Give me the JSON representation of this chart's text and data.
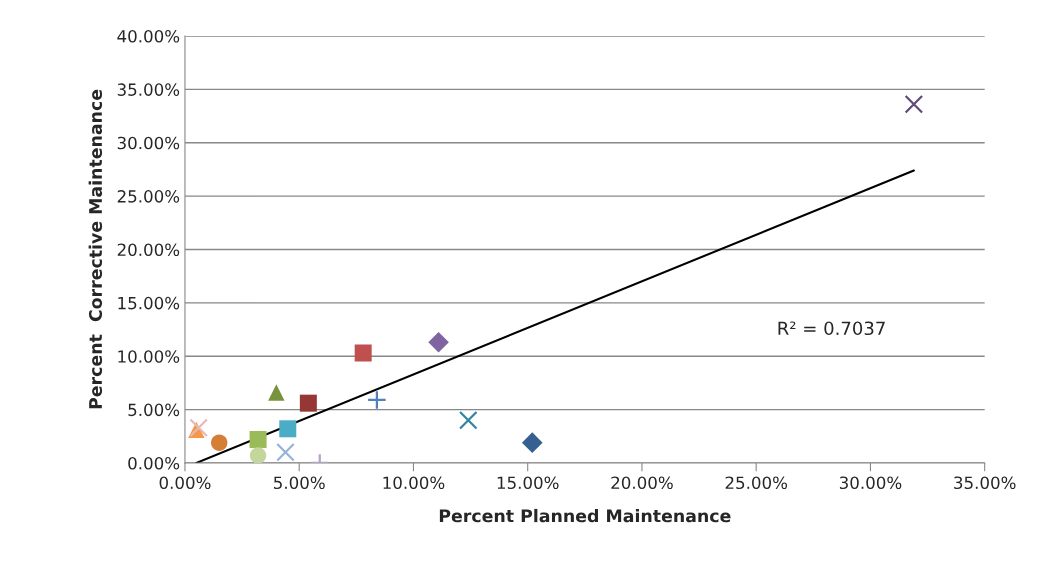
{
  "chart_data": {
    "type": "scatter",
    "xlabel": "Percent Planned Maintenance",
    "ylabel": "Percent  Corrective Maintenance",
    "xlim": [
      0,
      35
    ],
    "ylim": [
      0,
      40
    ],
    "xticks": [
      {
        "value": 0,
        "label": "0.00%"
      },
      {
        "value": 5,
        "label": "5.00%"
      },
      {
        "value": 10,
        "label": "10.00%"
      },
      {
        "value": 15,
        "label": "15.00%"
      },
      {
        "value": 20,
        "label": "20.00%"
      },
      {
        "value": 25,
        "label": "25.00%"
      },
      {
        "value": 30,
        "label": "30.00%"
      },
      {
        "value": 35,
        "label": "35.00%"
      }
    ],
    "yticks": [
      {
        "value": 0,
        "label": "0.00%"
      },
      {
        "value": 5,
        "label": "5.00%"
      },
      {
        "value": 10,
        "label": "10.00%"
      },
      {
        "value": 15,
        "label": "15.00%"
      },
      {
        "value": 20,
        "label": "20.00%"
      },
      {
        "value": 25,
        "label": "25.00%"
      },
      {
        "value": 30,
        "label": "30.00%"
      },
      {
        "value": 35,
        "label": "35.00%"
      },
      {
        "value": 40,
        "label": "40.00%"
      }
    ],
    "grid": "y",
    "legend": false,
    "annotations": [
      "R² = 0.7037"
    ],
    "series": [
      {
        "color": "#f79646",
        "marker": "triangle",
        "x": [
          0.5
        ],
        "values": [
          3.1
        ]
      },
      {
        "color": "#e6b9b8",
        "marker": "cross",
        "x": [
          0.6
        ],
        "values": [
          3.3
        ]
      },
      {
        "color": "#d47f35",
        "marker": "circle",
        "x": [
          1.5
        ],
        "values": [
          1.9
        ]
      },
      {
        "color": "#9bbb59",
        "marker": "square",
        "x": [
          3.2
        ],
        "values": [
          2.2
        ]
      },
      {
        "color": "#c3d69b",
        "marker": "circle",
        "x": [
          3.2
        ],
        "values": [
          0.7
        ]
      },
      {
        "color": "#95b3d7",
        "marker": "cross",
        "x": [
          4.4
        ],
        "values": [
          1.0
        ]
      },
      {
        "color": "#b3a2c7",
        "marker": "plus",
        "x": [
          5.9
        ],
        "values": [
          0
        ]
      },
      {
        "color": "#4bacc6",
        "marker": "square",
        "x": [
          4.5
        ],
        "values": [
          3.2
        ]
      },
      {
        "color": "#77933c",
        "marker": "triangle",
        "x": [
          4.0
        ],
        "values": [
          6.6
        ]
      },
      {
        "color": "#953735",
        "marker": "square",
        "x": [
          5.4
        ],
        "values": [
          5.6
        ]
      },
      {
        "color": "#c0504d",
        "marker": "square",
        "x": [
          7.8
        ],
        "values": [
          10.3
        ]
      },
      {
        "color": "#4f81bd",
        "marker": "plus",
        "x": [
          8.4
        ],
        "values": [
          5.9
        ]
      },
      {
        "color": "#8064a2",
        "marker": "diamond",
        "x": [
          11.1
        ],
        "values": [
          11.3
        ]
      },
      {
        "color": "#31859c",
        "marker": "cross",
        "x": [
          12.4
        ],
        "values": [
          4.0
        ]
      },
      {
        "color": "#376092",
        "marker": "diamond",
        "x": [
          15.2
        ],
        "values": [
          1.9
        ]
      },
      {
        "color": "#604a7b",
        "marker": "cross",
        "x": [
          31.9
        ],
        "values": [
          33.6
        ]
      },
      {
        "type": "line",
        "color": "#000000",
        "marker": "none",
        "x": [
          0.5,
          31.9
        ],
        "values": [
          0,
          27.4
        ]
      }
    ]
  }
}
